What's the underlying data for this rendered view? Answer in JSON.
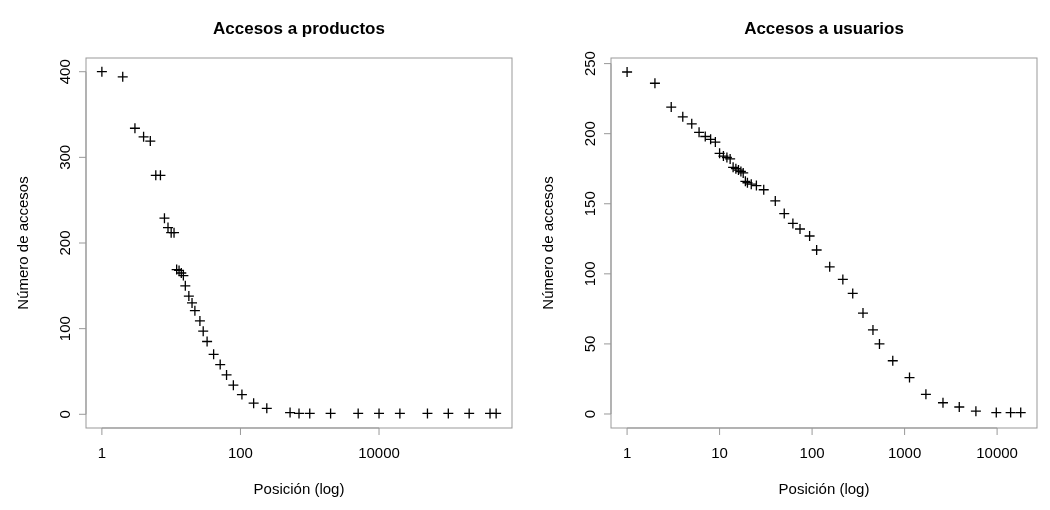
{
  "chart_data": [
    {
      "type": "scatter",
      "title": "Accesos a productos",
      "xlabel": "Posición (log)",
      "ylabel": "Número de accesos",
      "log": "x",
      "grid": false,
      "marker": "cross",
      "xlim": [
        0.59,
        830000
      ],
      "ylim": [
        -16,
        416
      ],
      "xticks": [
        1,
        100,
        10000
      ],
      "yticks": [
        0,
        100,
        200,
        300,
        400
      ],
      "series": [
        {
          "color": "#000000",
          "x": [
            1,
            2,
            3,
            4,
            5,
            6,
            7,
            8,
            9,
            10,
            11,
            12,
            13,
            14,
            15,
            16,
            18,
            20,
            22,
            26,
            29,
            33,
            41,
            51,
            63,
            79,
            105,
            155,
            240,
            520,
            700,
            1000,
            2000,
            5000,
            10000,
            20000,
            50000,
            100000,
            200000,
            400000,
            490000
          ],
          "values": [
            400,
            394,
            334,
            324,
            319,
            279,
            279,
            229,
            218,
            212,
            212,
            169,
            168,
            165,
            162,
            150,
            138,
            130,
            121,
            109,
            97,
            85,
            70,
            58,
            46,
            34,
            23,
            13,
            7,
            2,
            1,
            1,
            1,
            1,
            1,
            1,
            1,
            1,
            1,
            1,
            1
          ]
        }
      ]
    },
    {
      "type": "scatter",
      "title": "Accesos a usuarios",
      "xlabel": "Posición (log)",
      "ylabel": "Número de accesos",
      "log": "x",
      "grid": false,
      "marker": "cross",
      "xlim": [
        0.67,
        27000
      ],
      "ylim": [
        -10,
        254
      ],
      "xticks": [
        1,
        10,
        100,
        1000,
        10000
      ],
      "yticks": [
        0,
        50,
        100,
        150,
        200,
        250
      ],
      "series": [
        {
          "color": "#000000",
          "x": [
            1,
            2,
            3,
            4,
            5,
            6,
            7,
            8,
            9,
            10,
            11,
            12,
            13,
            14,
            15,
            16,
            17,
            18,
            19,
            20,
            22,
            25,
            30,
            40,
            50,
            62,
            74,
            94,
            112,
            155,
            215,
            275,
            355,
            455,
            535,
            745,
            1130,
            1700,
            2600,
            3900,
            5900,
            9800,
            14000,
            18000
          ],
          "values": [
            244,
            236,
            219,
            212,
            207,
            201,
            198,
            196,
            194,
            186,
            184,
            183,
            182,
            176,
            175,
            174,
            173,
            172,
            166,
            165,
            164,
            163,
            160,
            152,
            143,
            136,
            132,
            127,
            117,
            105,
            96,
            86,
            72,
            60,
            50,
            38,
            26,
            14,
            8,
            5,
            2,
            1,
            1,
            1
          ]
        }
      ]
    }
  ]
}
